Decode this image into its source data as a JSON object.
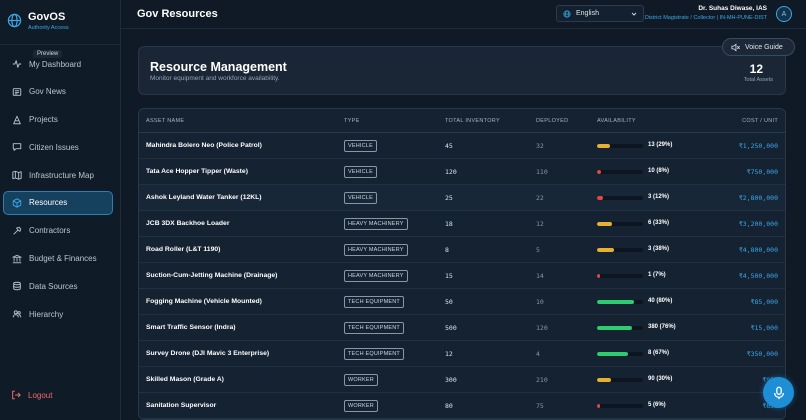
{
  "brand": {
    "name": "GovOS",
    "subtitle": "Authority Access"
  },
  "tooltip": {
    "preview": "Preview"
  },
  "nav": [
    {
      "label": "My Dashboard",
      "icon": "activity-icon"
    },
    {
      "label": "Gov News",
      "icon": "newspaper-icon"
    },
    {
      "label": "Projects",
      "icon": "projects-icon"
    },
    {
      "label": "Citizen Issues",
      "icon": "message-icon"
    },
    {
      "label": "Infrastructure Map",
      "icon": "map-icon"
    },
    {
      "label": "Resources",
      "icon": "box-icon",
      "active": true
    },
    {
      "label": "Contractors",
      "icon": "hammer-icon"
    },
    {
      "label": "Budget & Finances",
      "icon": "bank-icon"
    },
    {
      "label": "Data Sources",
      "icon": "database-icon"
    },
    {
      "label": "Hierarchy",
      "icon": "people-icon"
    }
  ],
  "logout": {
    "label": "Logout"
  },
  "header": {
    "title": "Gov Resources",
    "language": "English",
    "user_name": "Dr. Suhas Diwase, IAS",
    "user_role": "District Magistrate / Collector | IN-MH-PUNE-DIST",
    "avatar_initial": "A"
  },
  "hero": {
    "title": "Resource Management",
    "subtitle": "Monitor equipment and workforce availability.",
    "stat_value": "12",
    "stat_label": "Total Assets"
  },
  "voice_guide": {
    "label": "Voice Guide"
  },
  "table": {
    "columns": [
      "ASSET NAME",
      "TYPE",
      "TOTAL INVENTORY",
      "DEPLOYED",
      "AVAILABILITY",
      "COST / UNIT"
    ],
    "rows": [
      {
        "name": "Mahindra Bolero Neo (Police Patrol)",
        "type": "VEHICLE",
        "total": "45",
        "deployed": "32",
        "available": "13 (29%)",
        "pct": 29,
        "cost": "₹1,250,000"
      },
      {
        "name": "Tata Ace Hopper Tipper (Waste)",
        "type": "VEHICLE",
        "total": "120",
        "deployed": "110",
        "available": "10 (8%)",
        "pct": 8,
        "cost": "₹750,000"
      },
      {
        "name": "Ashok Leyland Water Tanker (12KL)",
        "type": "VEHICLE",
        "total": "25",
        "deployed": "22",
        "available": "3 (12%)",
        "pct": 12,
        "cost": "₹2,800,000"
      },
      {
        "name": "JCB 3DX Backhoe Loader",
        "type": "HEAVY MACHINERY",
        "total": "18",
        "deployed": "12",
        "available": "6 (33%)",
        "pct": 33,
        "cost": "₹3,200,000"
      },
      {
        "name": "Road Roller (L&T 1190)",
        "type": "HEAVY MACHINERY",
        "total": "8",
        "deployed": "5",
        "available": "3 (38%)",
        "pct": 38,
        "cost": "₹4,800,000"
      },
      {
        "name": "Suction-Cum-Jetting Machine (Drainage)",
        "type": "HEAVY MACHINERY",
        "total": "15",
        "deployed": "14",
        "available": "1 (7%)",
        "pct": 7,
        "cost": "₹4,500,000"
      },
      {
        "name": "Fogging Machine (Vehicle Mounted)",
        "type": "TECH EQUIPMENT",
        "total": "50",
        "deployed": "10",
        "available": "40 (80%)",
        "pct": 80,
        "cost": "₹85,000"
      },
      {
        "name": "Smart Traffic Sensor (Indra)",
        "type": "TECH EQUIPMENT",
        "total": "500",
        "deployed": "120",
        "available": "380 (76%)",
        "pct": 76,
        "cost": "₹15,000"
      },
      {
        "name": "Survey Drone (DJI Mavic 3 Enterprise)",
        "type": "TECH EQUIPMENT",
        "total": "12",
        "deployed": "4",
        "available": "8 (67%)",
        "pct": 67,
        "cost": "₹350,000"
      },
      {
        "name": "Skilled Mason (Grade A)",
        "type": "WORKER",
        "total": "300",
        "deployed": "210",
        "available": "90 (30%)",
        "pct": 30,
        "cost": "₹950"
      },
      {
        "name": "Sanitation Supervisor",
        "type": "WORKER",
        "total": "80",
        "deployed": "75",
        "available": "5 (6%)",
        "pct": 6,
        "cost": "₹650"
      }
    ]
  },
  "colors": {
    "accent": "#3aa8e8",
    "low": "#e04848",
    "medium": "#e8b030",
    "high": "#2ecc71"
  }
}
